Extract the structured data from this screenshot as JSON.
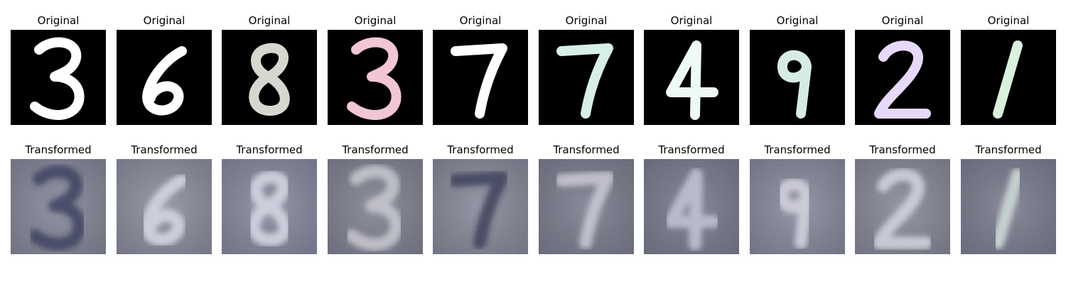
{
  "original_label": "Original",
  "transformed_label": "Transformed",
  "samples": [
    {
      "digit": "3",
      "original_color": "#ffffff",
      "transformed_bg": "#8a8da0",
      "transformed_stroke": "#2a2f52"
    },
    {
      "digit": "6",
      "original_color": "#ffffff",
      "transformed_bg": "#9496a8",
      "transformed_stroke": "#d8dbe6"
    },
    {
      "digit": "8",
      "original_color": "#d4d8cf",
      "transformed_bg": "#8c91a8",
      "transformed_stroke": "#d7dbe8"
    },
    {
      "digit": "3",
      "original_color": "#f2c6d3",
      "transformed_bg": "#858799",
      "transformed_stroke": "#c7c8d2"
    },
    {
      "digit": "7",
      "original_color": "#ffffff",
      "transformed_bg": "#8e90a2",
      "transformed_stroke": "#2b2f4e"
    },
    {
      "digit": "7",
      "original_color": "#d7efe7",
      "transformed_bg": "#7f8194",
      "transformed_stroke": "#c9c9d6"
    },
    {
      "digit": "4",
      "original_color": "#eefaf4",
      "transformed_bg": "#7b7f93",
      "transformed_stroke": "#bfc3d6"
    },
    {
      "digit": "9",
      "original_color": "#d7ebe5",
      "transformed_bg": "#8f90a6",
      "transformed_stroke": "#d6d6e3"
    },
    {
      "digit": "2",
      "original_color": "#e6d9fb",
      "transformed_bg": "#8e8fa0",
      "transformed_stroke": "#d4d6e2"
    },
    {
      "digit": "1",
      "original_color": "#d9f0dc",
      "transformed_bg": "#7e8094",
      "transformed_stroke": "#d2e0da"
    }
  ]
}
